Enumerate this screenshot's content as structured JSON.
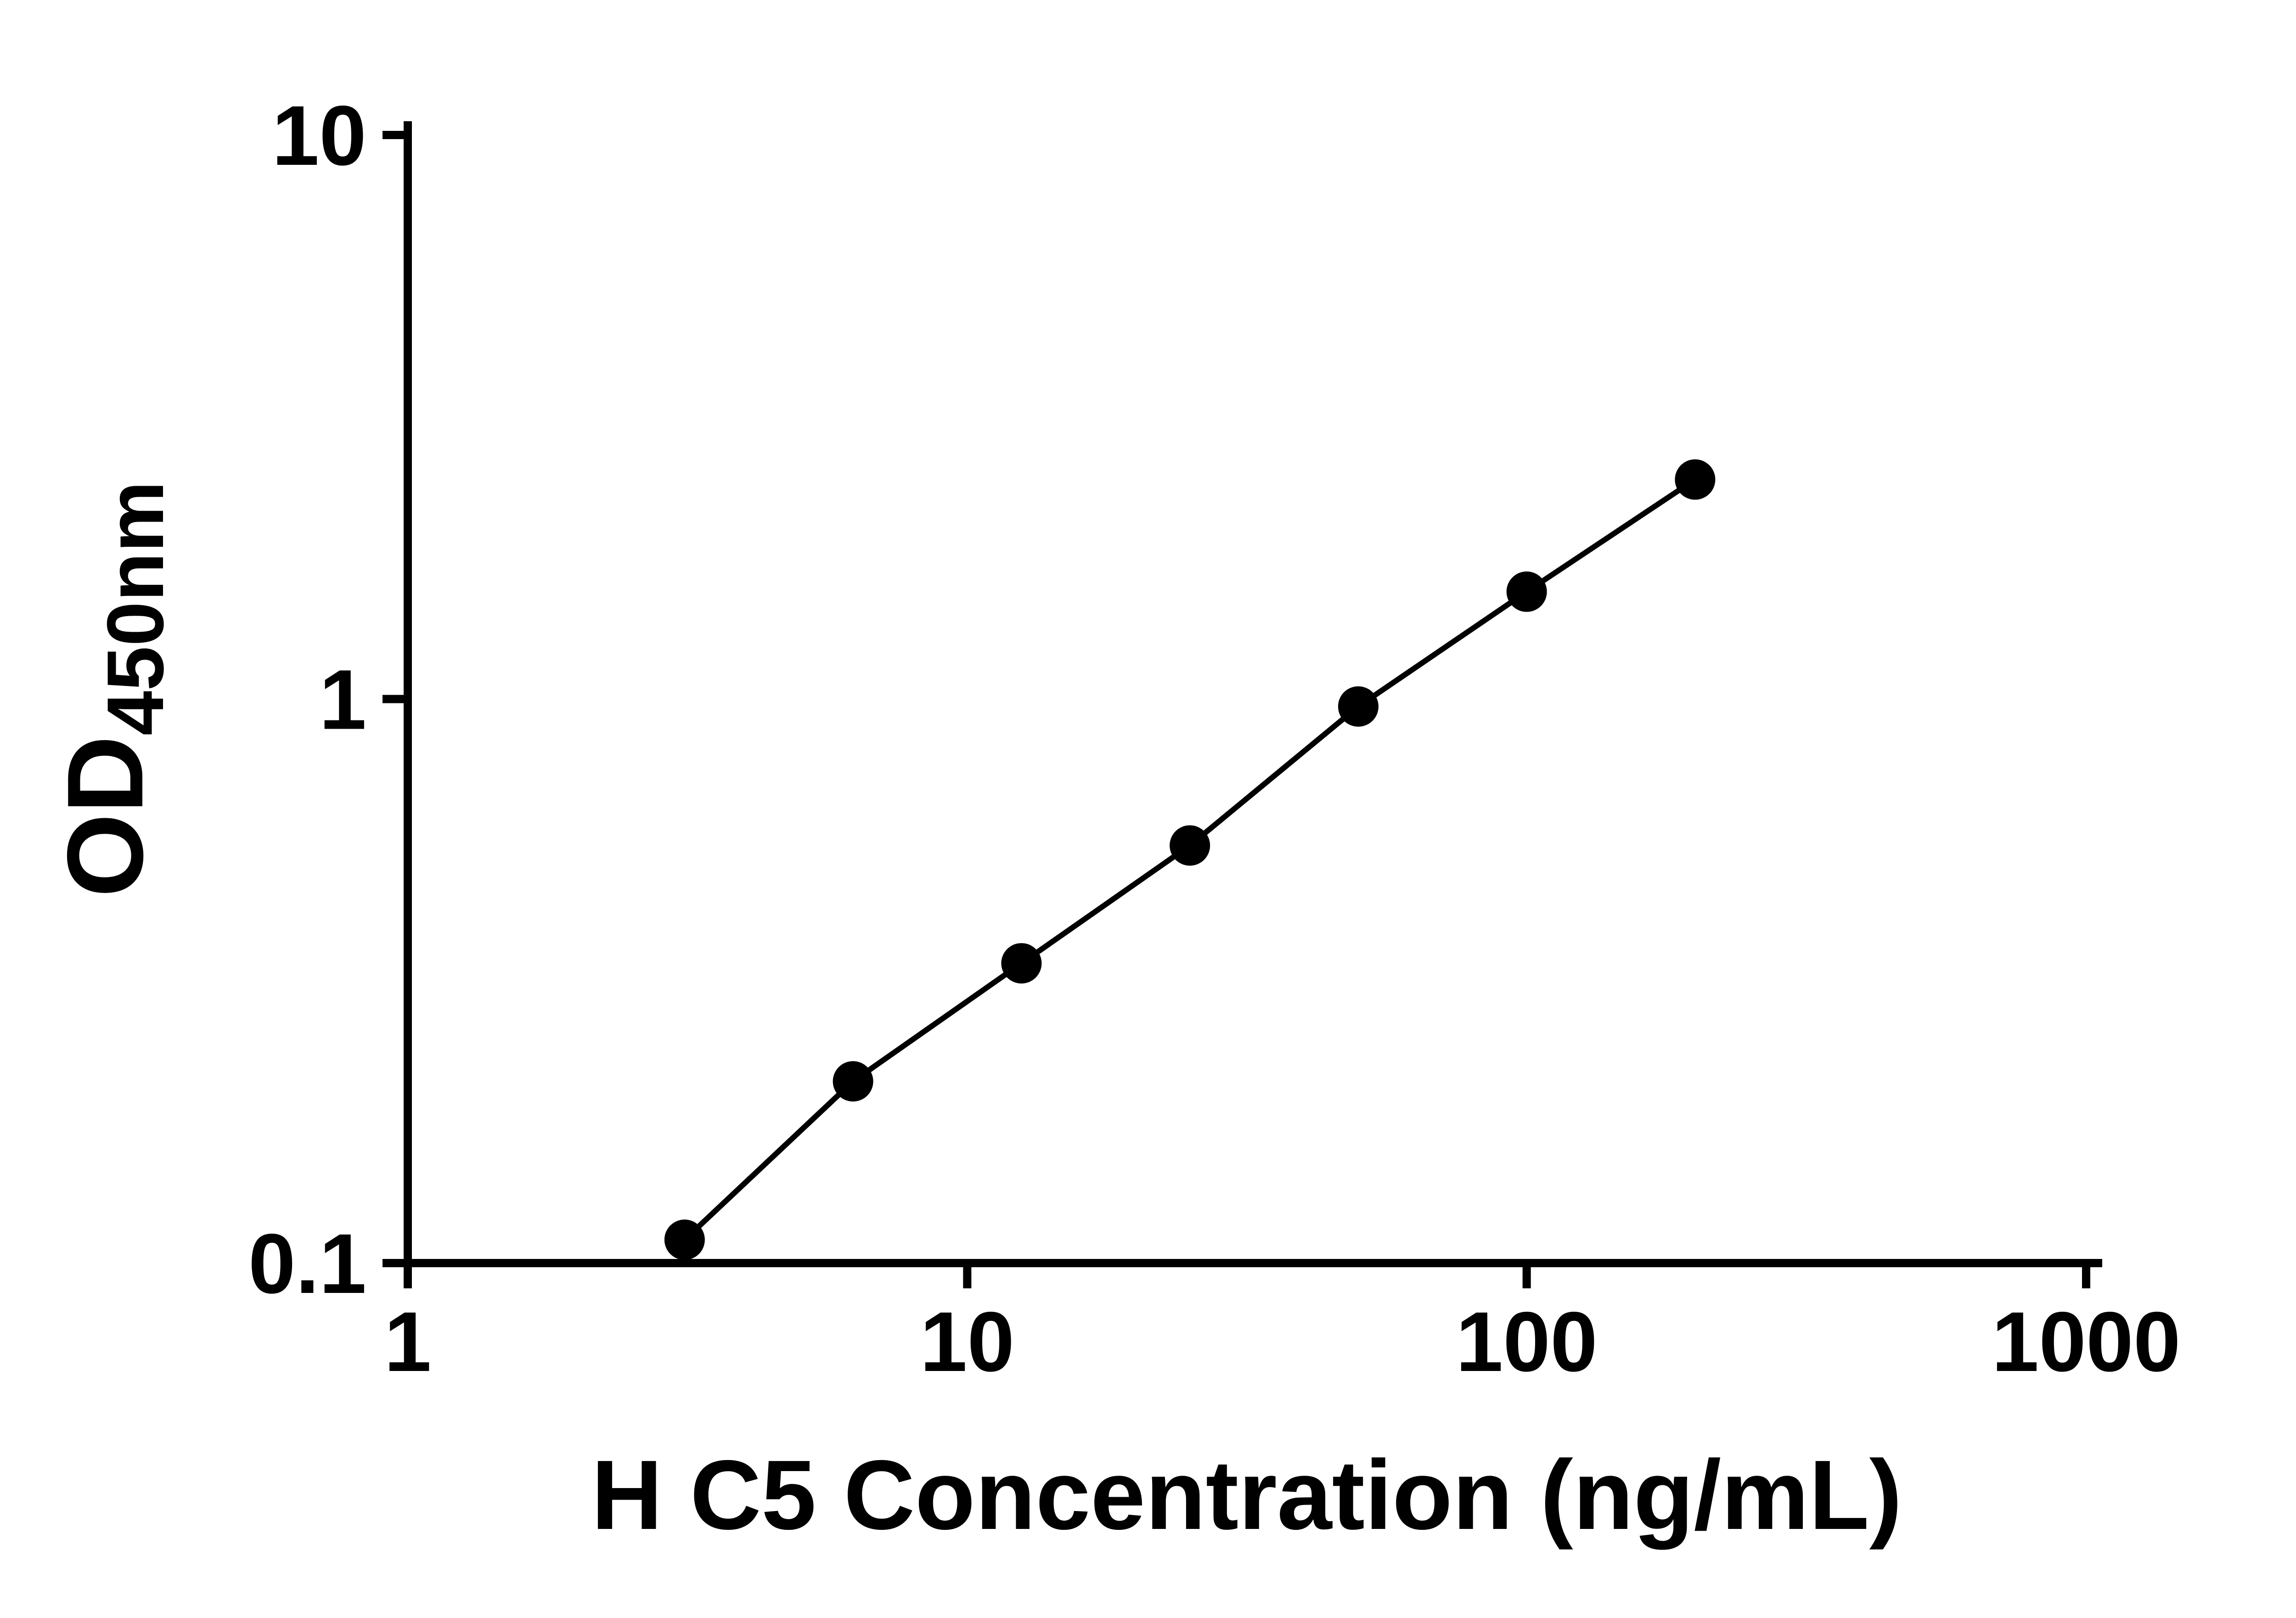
{
  "chart_data": {
    "type": "line",
    "title": "",
    "xlabel": "H C5 Concentration (ng/mL)",
    "ylabel_main": "OD",
    "ylabel_sub": "450nm",
    "x_scale": "log",
    "y_scale": "log",
    "xlim": [
      1,
      1000
    ],
    "ylim": [
      0.1,
      10
    ],
    "x_ticks": [
      1,
      10,
      100,
      1000
    ],
    "x_tick_labels": [
      "1",
      "10",
      "100",
      "1000"
    ],
    "y_ticks": [
      0.1,
      1,
      10
    ],
    "y_tick_labels": [
      "0.1",
      "1",
      "10"
    ],
    "grid": false,
    "legend": false,
    "x": [
      3.125,
      6.25,
      12.5,
      25,
      50,
      100,
      200
    ],
    "y": [
      0.11,
      0.21,
      0.34,
      0.55,
      0.97,
      1.55,
      2.45
    ],
    "line_color": "#000000",
    "marker_color": "#000000",
    "axis_color": "#000000",
    "marker_size": 44,
    "line_width": 12,
    "axis_width": 18
  }
}
